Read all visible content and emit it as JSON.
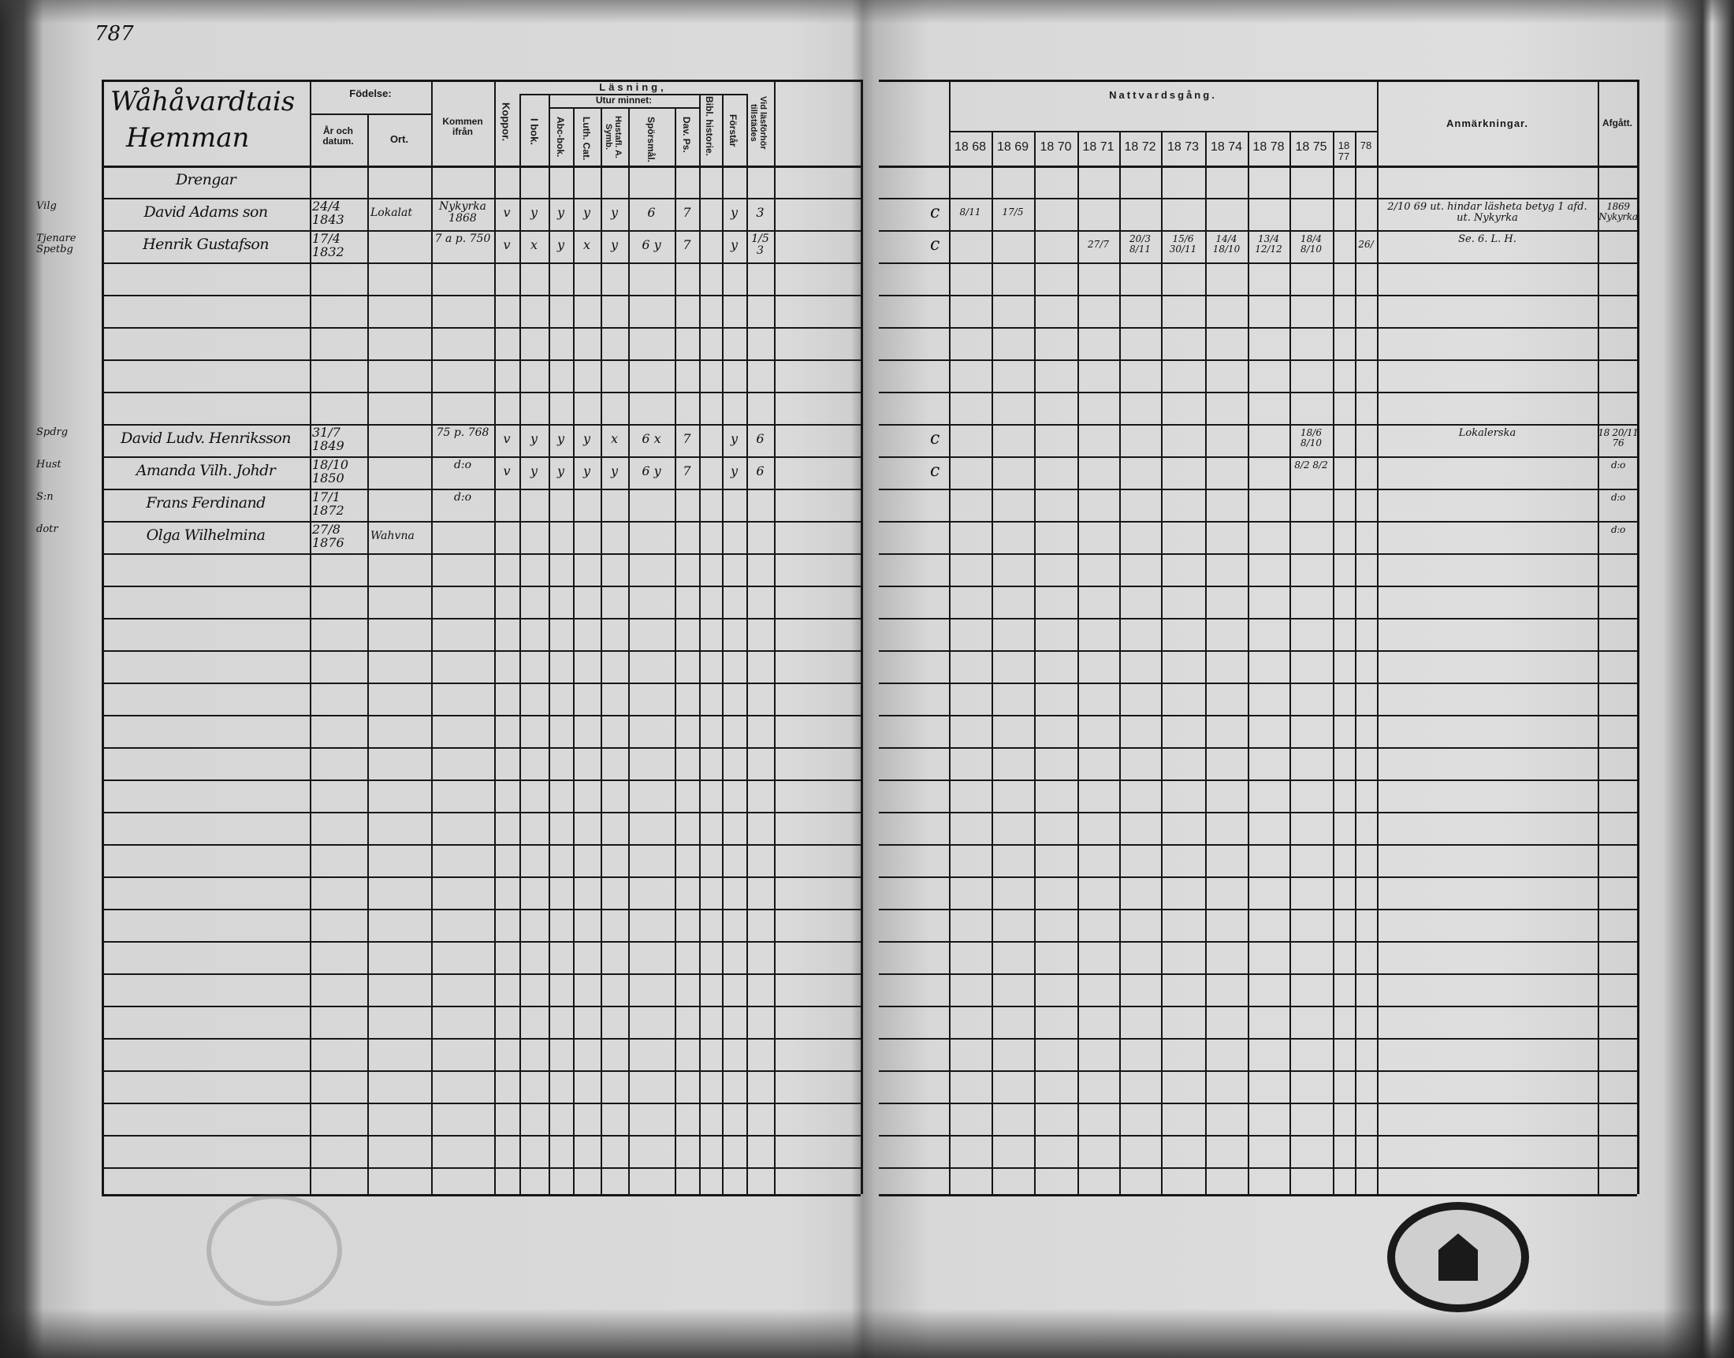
{
  "page_number": "787",
  "farm_title": [
    "Wåhåvardtais",
    "Hemman"
  ],
  "left_headers": {
    "fodelse": "Födelse:",
    "ar": "År och datum.",
    "ort": "Ort.",
    "kommen": "Kommen ifrån",
    "koppor": "Koppor.",
    "lasning": "Läsning,",
    "i_bok": "I bok.",
    "utur_minnet": "Utur minnet:",
    "abc": "Abc-bok.",
    "luth": "Luth. Cat.",
    "hust": "Hustafl. A. Symb.",
    "spors": "Spörsmål.",
    "dav": "Dav. Ps.",
    "bibl": "Bibl. historie.",
    "forstar": "Förstår",
    "vid": "Vid läsförhör tillstädes"
  },
  "right_headers": {
    "nattvard": "Nattvardsgång.",
    "years": [
      "18 68",
      "18 69",
      "18 70",
      "18 71",
      "18 72",
      "18 73",
      "18 74",
      "18 78",
      "18 75",
      "18 77",
      "78"
    ],
    "anm": "Anmärkningar.",
    "afgatt": "Afgått."
  },
  "rows": [
    {
      "name": "Drengar"
    },
    {
      "margin": "Vilg",
      "name": "David Adams son",
      "birth": "24/4 1843",
      "place": "Lokalat",
      "from": "Nykyrka 1868",
      "kopp": "v",
      "ibok": "y",
      "abc": "y",
      "luth": "y",
      "hust": "y",
      "spors": "6",
      "dav": "7",
      "forst": "y",
      "vid": "3",
      "mark": "c",
      "years": [
        "8/11",
        "17/5",
        "",
        "",
        "",
        "",
        "",
        "",
        "",
        "",
        ""
      ],
      "anm": "2/10 69 ut. hindar läsheta betyg 1 afd. ut. Nykyrka",
      "afgatt": "1869 Nykyrka"
    },
    {
      "margin": "Tjenare Spetbg",
      "name": "Henrik Gustafson",
      "birth": "17/4 1832",
      "from": "7 a p. 750",
      "kopp": "v",
      "ibok": "x",
      "abc": "y",
      "luth": "x",
      "hust": "y",
      "spors": "6 y",
      "dav": "7",
      "forst": "y",
      "vid": "1/5 3",
      "mark": "c",
      "years": [
        "",
        "",
        "",
        "27/7",
        "20/3 8/11",
        "15/6 30/11",
        "14/4 18/10",
        "13/4 12/12",
        "18/4 8/10",
        "",
        "26/"
      ],
      "anm": "Se. 6. L. H."
    },
    {},
    {},
    {},
    {},
    {},
    {
      "margin": "Spdrg",
      "name": "David Ludv. Henriksson",
      "birth": "31/7 1849",
      "from": "75 p. 768",
      "kopp": "v",
      "ibok": "y",
      "abc": "y",
      "luth": "y",
      "hust": "x",
      "spors": "6 x",
      "dav": "7",
      "forst": "y",
      "vid": "6",
      "mark": "c",
      "years": [
        "",
        "",
        "",
        "",
        "",
        "",
        "",
        "",
        "18/6 8/10",
        "",
        ""
      ],
      "anm": "Lokalerska",
      "afgatt": "18 20/11 76"
    },
    {
      "margin": "Hust",
      "name": "Amanda Vilh. Johdr",
      "birth": "18/10 1850",
      "from": "d:o",
      "kopp": "v",
      "ibok": "y",
      "abc": "y",
      "luth": "y",
      "hust": "y",
      "spors": "6 y",
      "dav": "7",
      "forst": "y",
      "vid": "6",
      "mark": "c",
      "years": [
        "",
        "",
        "",
        "",
        "",
        "",
        "",
        "",
        "8/2 8/2",
        "",
        ""
      ],
      "afgatt": "d:o"
    },
    {
      "margin": "S:n",
      "name": "Frans Ferdinand",
      "birth": "17/1 1872",
      "from": "d:o",
      "afgatt": "d:o"
    },
    {
      "margin": "dotr",
      "name": "Olga Wilhelmina",
      "birth": "27/8 1876",
      "place": "Wahvna",
      "afgatt": "d:o"
    }
  ],
  "colors": {
    "paper": "#d8d8d8",
    "ink": "#161616",
    "binding": "#2a2a2a"
  }
}
